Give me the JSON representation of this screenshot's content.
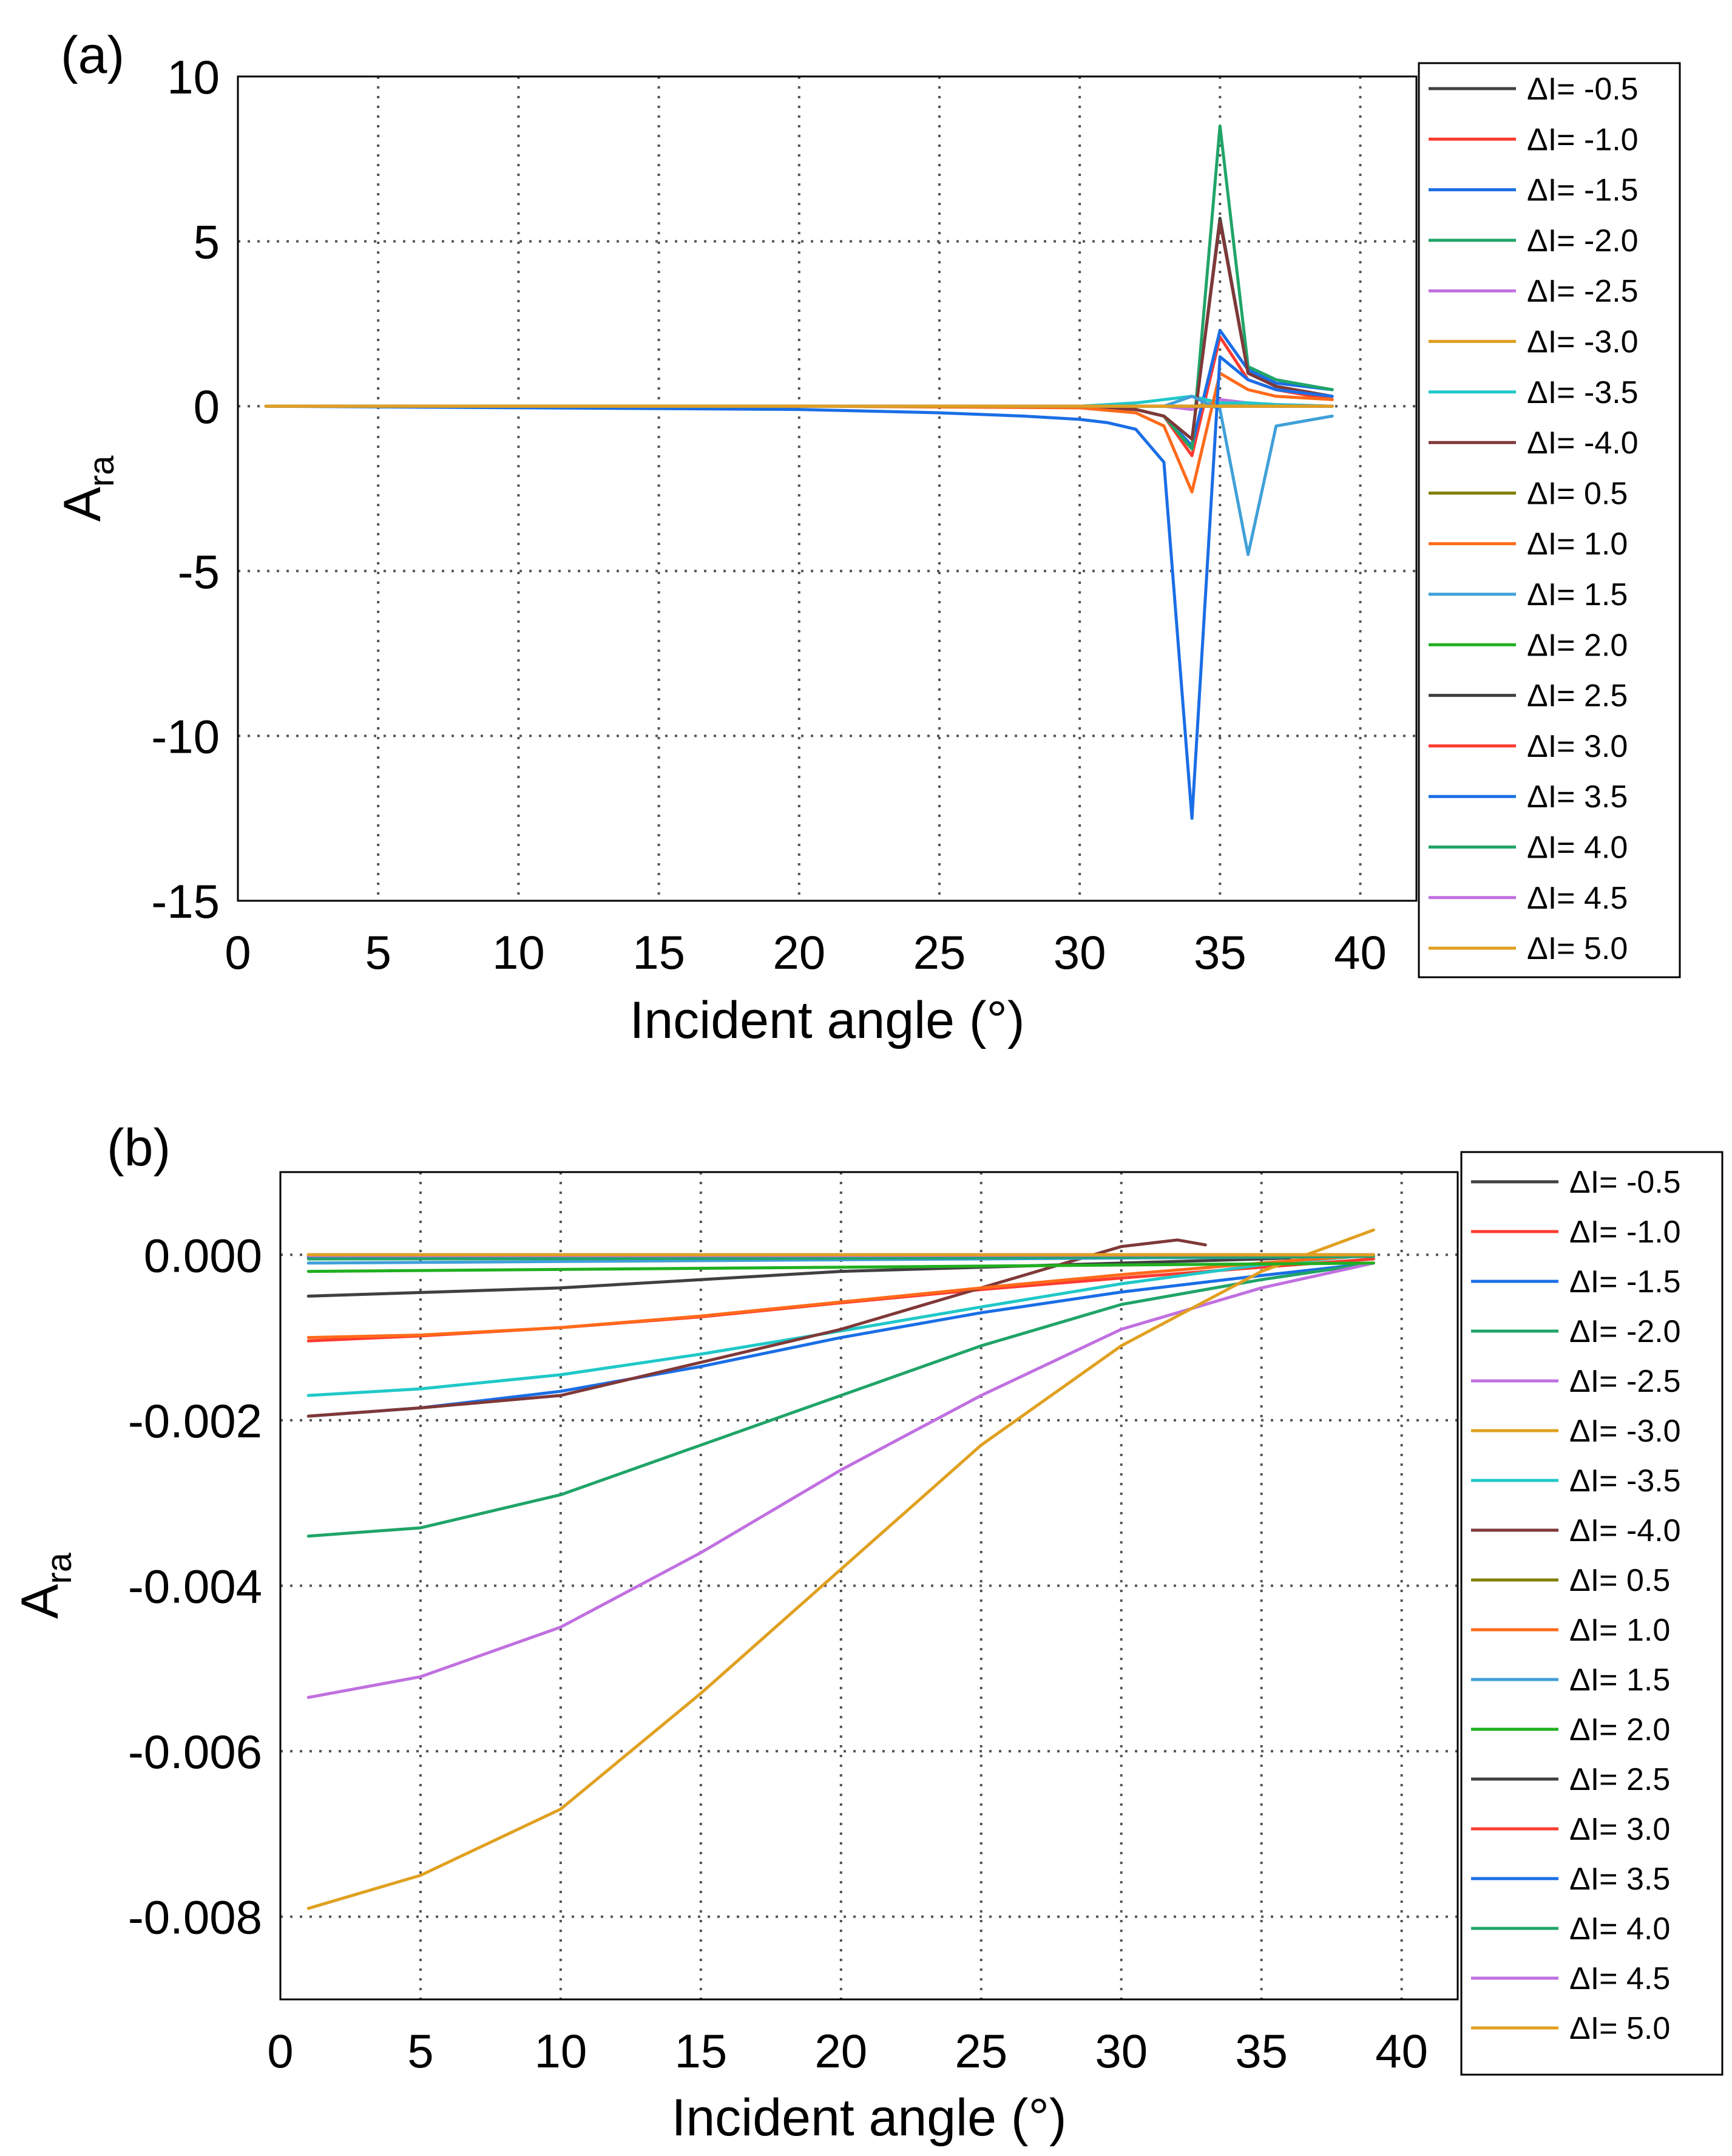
{
  "chart_data": [
    {
      "type": "line",
      "panel_label": "(a)",
      "xlabel": "Incident angle (°)",
      "ylabel": "A",
      "ylabel_sub": "ra",
      "xlim": [
        0,
        42
      ],
      "ylim": [
        -15,
        10
      ],
      "xticks": [
        0,
        5,
        10,
        15,
        20,
        25,
        30,
        35,
        40
      ],
      "yticks": [
        10,
        5,
        0,
        -5,
        -10,
        -15
      ],
      "ytick_labels": [
        "10",
        "5",
        "0",
        "-5",
        "-10",
        "-15"
      ],
      "grid": true,
      "legend_position": "outside-right",
      "series": [
        {
          "name": "ΔI= -0.5",
          "color": "#404040",
          "x": [
            1,
            20,
            30,
            32,
            33,
            34,
            35,
            36,
            37,
            39
          ],
          "y": [
            0,
            0,
            0,
            -0.1,
            -0.3,
            -1.0,
            5.7,
            1.0,
            0.6,
            0.3
          ]
        },
        {
          "name": "ΔI= -1.0",
          "color": "#ff3b30",
          "x": [
            1,
            20,
            30,
            32,
            33,
            34,
            35,
            36,
            37,
            39
          ],
          "y": [
            0,
            0,
            0,
            -0.1,
            -0.3,
            -1.5,
            2.1,
            0.8,
            0.5,
            0.2
          ]
        },
        {
          "name": "ΔI= -1.5",
          "color": "#1a6ee6",
          "x": [
            1,
            20,
            30,
            32,
            33,
            34,
            35,
            36,
            37,
            39
          ],
          "y": [
            0,
            0,
            0,
            -0.1,
            -0.3,
            -1.2,
            2.3,
            1.1,
            0.7,
            0.5
          ]
        },
        {
          "name": "ΔI= -2.0",
          "color": "#20a468",
          "x": [
            1,
            20,
            30,
            32,
            33,
            34,
            35,
            36,
            37,
            39
          ],
          "y": [
            0,
            0,
            0,
            -0.1,
            -0.3,
            -1.3,
            8.5,
            1.2,
            0.8,
            0.5
          ]
        },
        {
          "name": "ΔI= -2.5",
          "color": "#c070e0",
          "x": [
            1,
            20,
            30,
            32,
            33,
            34,
            35,
            36,
            37,
            39
          ],
          "y": [
            0,
            0,
            0,
            0,
            0,
            -0.1,
            0.2,
            0.1,
            0.05,
            0
          ]
        },
        {
          "name": "ΔI= -3.0",
          "color": "#e0a020",
          "x": [
            1,
            20,
            30,
            32,
            33,
            34,
            35,
            36,
            37,
            39
          ],
          "y": [
            0,
            0,
            0,
            0,
            0,
            0,
            0.1,
            0,
            0,
            0
          ]
        },
        {
          "name": "ΔI= -3.5",
          "color": "#20c8c8",
          "x": [
            1,
            20,
            30,
            32,
            33,
            34,
            35,
            36,
            37,
            39
          ],
          "y": [
            0,
            0,
            0,
            0.1,
            0.2,
            0.3,
            0.1,
            0.1,
            0.05,
            0
          ]
        },
        {
          "name": "ΔI= -4.0",
          "color": "#803838",
          "x": [
            1,
            20,
            30,
            32,
            33,
            34,
            35,
            36,
            37,
            39
          ],
          "y": [
            0,
            0,
            0,
            -0.1,
            -0.3,
            -1.0,
            5.6,
            1.0,
            0.6,
            0.3
          ]
        },
        {
          "name": "ΔI= 0.5",
          "color": "#808000",
          "x": [
            1,
            20,
            30,
            32,
            33,
            34,
            35,
            36,
            37,
            39
          ],
          "y": [
            0,
            0,
            0,
            0,
            0,
            0,
            0,
            0,
            0,
            0
          ]
        },
        {
          "name": "ΔI= 1.0",
          "color": "#ff6a1a",
          "x": [
            1,
            20,
            30,
            32,
            33,
            34,
            35,
            36,
            37,
            39
          ],
          "y": [
            0,
            0,
            -0.05,
            -0.2,
            -0.6,
            -2.6,
            1.0,
            0.5,
            0.3,
            0.2
          ]
        },
        {
          "name": "ΔI= 1.5",
          "color": "#40a0d8",
          "x": [
            1,
            20,
            30,
            32,
            33,
            34,
            35,
            36,
            37,
            39
          ],
          "y": [
            0,
            0,
            0,
            0,
            0,
            0.3,
            -0.1,
            -4.5,
            -0.6,
            -0.3
          ]
        },
        {
          "name": "ΔI= 2.0",
          "color": "#20b020",
          "x": [
            1,
            20,
            30,
            32,
            33,
            34,
            35,
            36,
            37,
            39
          ],
          "y": [
            0,
            0,
            0,
            0,
            0,
            0,
            0,
            0,
            0,
            0
          ]
        },
        {
          "name": "ΔI= 2.5",
          "color": "#404040",
          "x": [
            1,
            20,
            30,
            32,
            33,
            34,
            35,
            36,
            37,
            39
          ],
          "y": [
            0,
            0,
            0,
            0,
            0,
            0,
            0,
            0,
            0,
            0
          ]
        },
        {
          "name": "ΔI= 3.0",
          "color": "#ff3b30",
          "x": [
            1,
            20,
            30,
            32,
            33,
            34,
            35,
            36,
            37,
            39
          ],
          "y": [
            0,
            0,
            0,
            0,
            0,
            0,
            0,
            0,
            0,
            0
          ]
        },
        {
          "name": "ΔI= 3.5",
          "color": "#1a6ee6",
          "x": [
            1,
            20,
            25,
            28,
            30,
            31,
            32,
            33,
            34,
            35,
            36,
            37,
            39
          ],
          "y": [
            0,
            -0.1,
            -0.2,
            -0.3,
            -0.4,
            -0.5,
            -0.7,
            -1.7,
            -12.5,
            1.5,
            0.8,
            0.5,
            0.3
          ]
        },
        {
          "name": "ΔI= 4.0",
          "color": "#20a468",
          "x": [
            1,
            20,
            30,
            32,
            33,
            34,
            35,
            36,
            37,
            39
          ],
          "y": [
            0,
            0,
            0,
            0,
            0,
            0,
            0,
            0,
            0,
            0
          ]
        },
        {
          "name": "ΔI= 4.5",
          "color": "#c070e0",
          "x": [
            1,
            20,
            30,
            32,
            33,
            34,
            35,
            36,
            37,
            39
          ],
          "y": [
            0,
            0,
            0,
            0,
            0,
            0,
            0,
            0,
            0,
            0
          ]
        },
        {
          "name": "ΔI= 5.0",
          "color": "#e0a020",
          "x": [
            1,
            20,
            30,
            32,
            33,
            34,
            35,
            36,
            37,
            39
          ],
          "y": [
            0,
            0,
            0,
            0,
            0,
            0,
            0,
            0,
            0,
            0
          ]
        }
      ]
    },
    {
      "type": "line",
      "panel_label": "(b)",
      "xlabel": "Incident angle (°)",
      "ylabel": "A",
      "ylabel_sub": "ra",
      "xlim": [
        0,
        42
      ],
      "ylim": [
        -0.009,
        0.001
      ],
      "xticks": [
        0,
        5,
        10,
        15,
        20,
        25,
        30,
        35,
        40
      ],
      "yticks": [
        0,
        -0.002,
        -0.004,
        -0.006,
        -0.008
      ],
      "ytick_labels": [
        "0.000",
        "-0.002",
        "-0.004",
        "-0.006",
        "-0.008"
      ],
      "grid": true,
      "legend_position": "outside-right",
      "series": [
        {
          "name": "ΔI= -0.5",
          "color": "#404040",
          "x": [
            1,
            10,
            20,
            30,
            35,
            39
          ],
          "y": [
            -0.0005,
            -0.0004,
            -0.0002,
            -0.0001,
            -5e-05,
            0
          ]
        },
        {
          "name": "ΔI= -1.0",
          "color": "#ff3b30",
          "x": [
            1,
            5,
            10,
            15,
            20,
            25,
            30,
            35,
            39
          ],
          "y": [
            -0.00104,
            -0.00098,
            -0.00088,
            -0.00075,
            -0.00058,
            -0.00042,
            -0.00028,
            -0.00015,
            -5e-05
          ]
        },
        {
          "name": "ΔI= -1.5",
          "color": "#1a6ee6",
          "x": [
            1,
            5,
            10,
            15,
            20,
            25,
            30,
            35,
            39
          ],
          "y": [
            -0.00195,
            -0.00185,
            -0.00165,
            -0.00135,
            -0.001,
            -0.0007,
            -0.00045,
            -0.00025,
            -0.0001
          ]
        },
        {
          "name": "ΔI= -2.0",
          "color": "#20a468",
          "x": [
            1,
            5,
            10,
            15,
            20,
            25,
            30,
            35,
            39
          ],
          "y": [
            -0.0034,
            -0.0033,
            -0.0029,
            -0.0023,
            -0.0017,
            -0.0011,
            -0.0006,
            -0.0003,
            -0.0001
          ]
        },
        {
          "name": "ΔI= -2.5",
          "color": "#c070e0",
          "x": [
            1,
            5,
            10,
            15,
            20,
            25,
            30,
            35,
            39
          ],
          "y": [
            -0.00535,
            -0.0051,
            -0.0045,
            -0.0036,
            -0.0026,
            -0.0017,
            -0.0009,
            -0.0004,
            -0.0001
          ]
        },
        {
          "name": "ΔI= -3.0",
          "color": "#e0a020",
          "x": [
            1,
            5,
            10,
            15,
            20,
            25,
            30,
            35,
            39
          ],
          "y": [
            -0.0079,
            -0.0075,
            -0.0067,
            -0.0053,
            -0.0038,
            -0.0023,
            -0.0011,
            -0.0002,
            0.0003
          ]
        },
        {
          "name": "ΔI= -3.5",
          "color": "#20c8c8",
          "x": [
            1,
            5,
            10,
            15,
            20,
            25,
            30,
            35,
            39
          ],
          "y": [
            -0.0017,
            -0.00162,
            -0.00145,
            -0.0012,
            -0.00092,
            -0.00063,
            -0.00035,
            -0.00012,
            0
          ]
        },
        {
          "name": "ΔI= -4.0",
          "color": "#803838",
          "x": [
            1,
            5,
            10,
            15,
            20,
            25,
            28,
            30,
            32,
            33
          ],
          "y": [
            -0.00195,
            -0.00185,
            -0.0017,
            -0.0013,
            -0.0009,
            -0.0004,
            -0.0001,
            0.0001,
            0.00018,
            0.00012
          ]
        },
        {
          "name": "ΔI= 0.5",
          "color": "#808000",
          "x": [
            1,
            20,
            39
          ],
          "y": [
            0,
            0,
            0
          ]
        },
        {
          "name": "ΔI= 1.0",
          "color": "#ff6a1a",
          "x": [
            1,
            5,
            10,
            15,
            20,
            25,
            30,
            35,
            39
          ],
          "y": [
            -0.001,
            -0.00097,
            -0.00088,
            -0.00074,
            -0.00057,
            -0.0004,
            -0.00024,
            -0.0001,
            0
          ]
        },
        {
          "name": "ΔI= 1.5",
          "color": "#40a0d8",
          "x": [
            1,
            20,
            39
          ],
          "y": [
            -0.0001,
            -6e-05,
            -2e-05
          ]
        },
        {
          "name": "ΔI= 2.0",
          "color": "#20b020",
          "x": [
            1,
            20,
            39
          ],
          "y": [
            -0.0002,
            -0.00015,
            -0.0001
          ]
        },
        {
          "name": "ΔI= 2.5",
          "color": "#404040",
          "x": [
            1,
            20,
            39
          ],
          "y": [
            -3e-05,
            -2e-05,
            -1e-05
          ]
        },
        {
          "name": "ΔI= 3.0",
          "color": "#ff3b30",
          "x": [
            1,
            20,
            39
          ],
          "y": [
            0,
            0,
            0
          ]
        },
        {
          "name": "ΔI= 3.5",
          "color": "#1a6ee6",
          "x": [
            1,
            20,
            39
          ],
          "y": [
            -2e-05,
            -2e-05,
            -1e-05
          ]
        },
        {
          "name": "ΔI= 4.0",
          "color": "#20a468",
          "x": [
            1,
            20,
            39
          ],
          "y": [
            -5e-05,
            -4e-05,
            -2e-05
          ]
        },
        {
          "name": "ΔI= 4.5",
          "color": "#c070e0",
          "x": [
            1,
            20,
            39
          ],
          "y": [
            -1e-05,
            -1e-05,
            0
          ]
        },
        {
          "name": "ΔI= 5.0",
          "color": "#e0a020",
          "x": [
            1,
            20,
            39
          ],
          "y": [
            0,
            0,
            0
          ]
        }
      ]
    }
  ]
}
